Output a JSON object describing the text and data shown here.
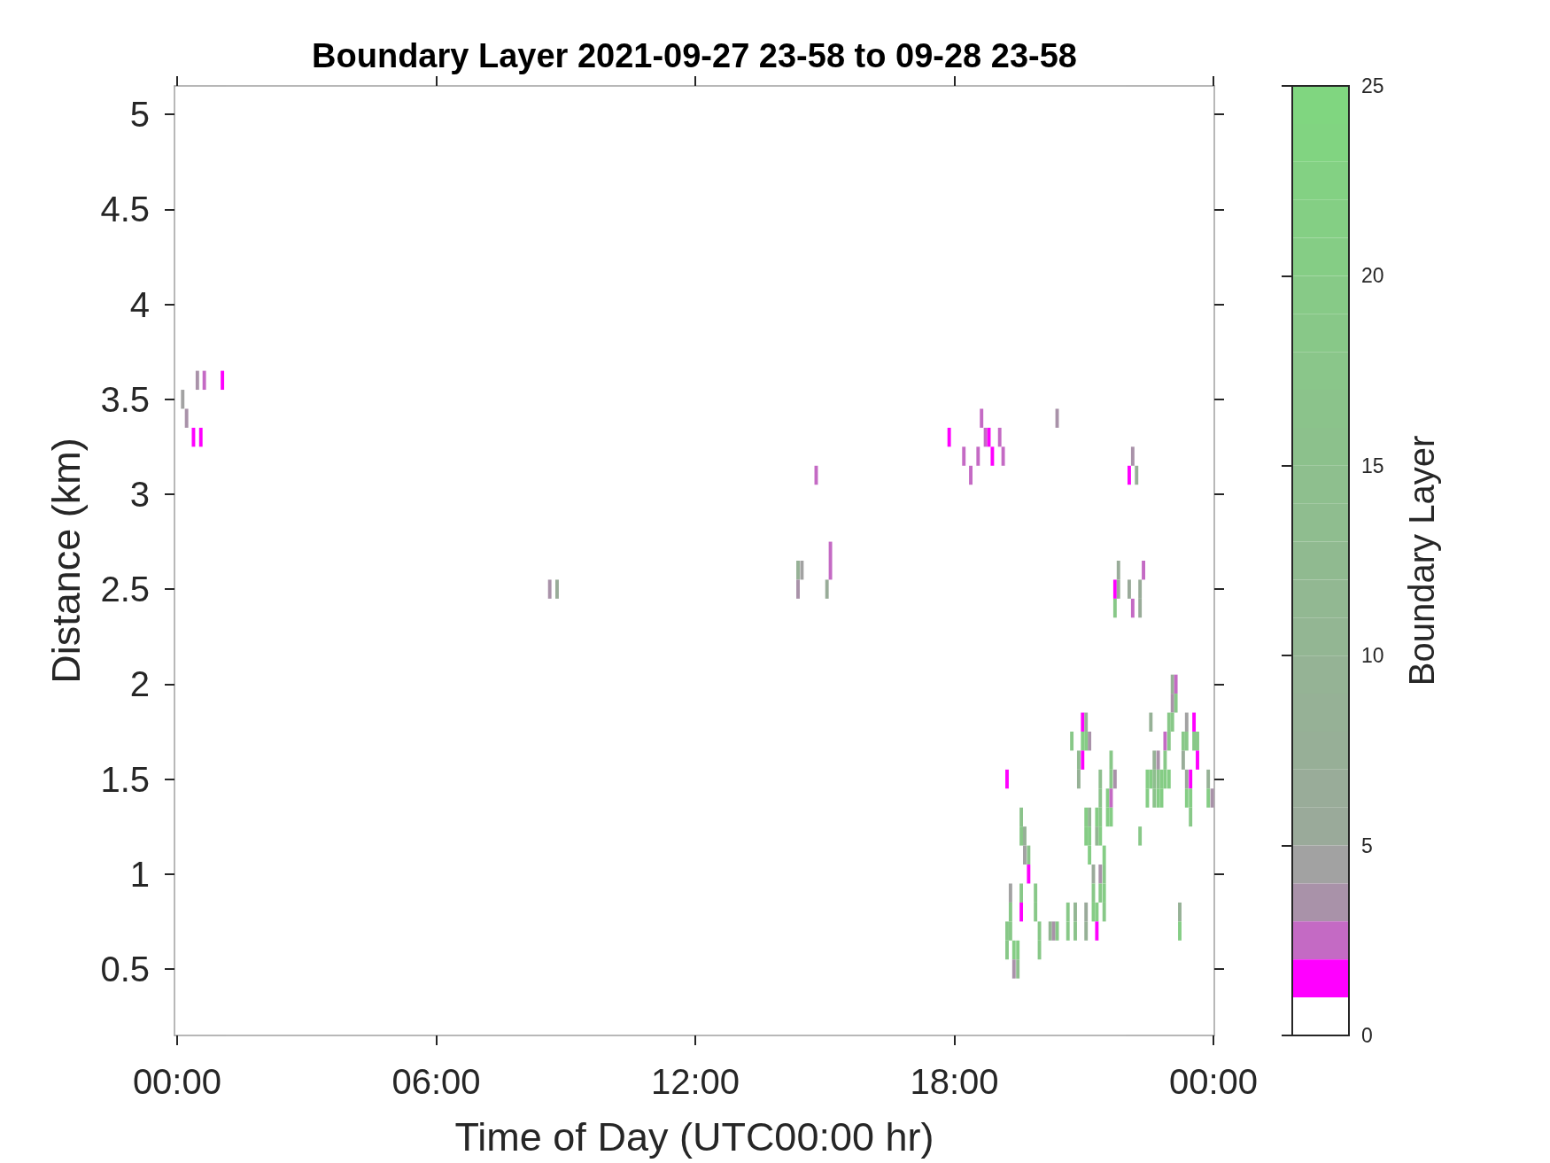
{
  "chart_data": {
    "type": "bar",
    "title": "Boundary Layer 2021-09-27 23-58 to 09-28 23-58",
    "xlabel": "Time of Day (UTC00:00 hr)",
    "ylabel": "Distance (km)",
    "clabel": "Boundary Layer",
    "xlim": [
      -0.06,
      24.02
    ],
    "xticks": [
      {
        "value": 0,
        "label": "00:00"
      },
      {
        "value": 6,
        "label": "06:00"
      },
      {
        "value": 12,
        "label": "12:00"
      },
      {
        "value": 18,
        "label": "18:00"
      },
      {
        "value": 24,
        "label": "00:00"
      }
    ],
    "ylim": [
      0.15,
      5.15
    ],
    "yticks": [
      0.5,
      1,
      1.5,
      2,
      2.5,
      3,
      3.5,
      4,
      4.5,
      5
    ],
    "clim": [
      0,
      25
    ],
    "cticks": [
      0,
      5,
      10,
      15,
      20,
      25
    ],
    "series": [
      {
        "x": [
          0.13,
          0.22,
          0.38,
          0.47,
          0.55,
          0.63,
          1.05,
          8.63,
          8.8,
          14.38,
          14.47,
          14.8,
          15.05,
          15.13,
          17.88,
          18.22,
          18.38,
          18.55,
          18.63,
          18.72,
          18.8,
          18.88,
          19.05,
          19.13,
          19.22,
          19.3,
          19.38,
          19.47,
          19.55,
          19.63,
          19.72,
          19.88,
          19.97,
          20.22,
          20.3,
          20.38,
          20.63,
          20.72,
          20.8,
          20.88,
          20.97,
          21.05,
          21.13,
          21.22,
          21.3,
          21.38,
          21.47,
          21.55,
          21.63,
          21.72,
          21.8,
          22.05,
          22.13,
          22.22,
          22.3,
          22.38,
          22.47,
          22.55,
          22.63,
          22.72,
          22.8,
          22.88,
          22.97,
          23.05,
          23.13,
          23.22,
          23.3,
          23.38,
          23.47,
          23.55,
          23.63,
          23.88,
          23.97
        ],
        "base": [
          3.45,
          3.35,
          3.25,
          3.55,
          3.25,
          3.55,
          3.55,
          2.45,
          2.45,
          2.55,
          2.55,
          3.05,
          2.45,
          2.65,
          3.25,
          3.15,
          3.05,
          3.15,
          3.35,
          3.25,
          3.25,
          3.15,
          3.25,
          3.15,
          1.45,
          0.85,
          0.55,
          0.55,
          1.25,
          1.15,
          1.05,
          0.85,
          0.65,
          0.65,
          0.65,
          3.35,
          0.75,
          1.65,
          0.75,
          1.55,
          1.75,
          1.75,
          1.65,
          0.95,
          1.25,
          1.45,
          1.05,
          1.35,
          1.55,
          2.45,
          2.55,
          3.05,
          3.15,
          3.05,
          2.45,
          2.55,
          1.45,
          1.75,
          1.55,
          1.55,
          1.45,
          1.65,
          1.75,
          1.95,
          1.95,
          0.75,
          1.65,
          1.75,
          1.45,
          1.75,
          1.65,
          1.45,
          1.35
        ],
        "values": [
          0.1,
          0.1,
          0.1,
          0.1,
          0.1,
          0.1,
          0.1,
          0.1,
          0.1,
          0.1,
          0.1,
          0.1,
          0.1,
          0.1,
          0.1,
          0.1,
          0.1,
          0.1,
          0.1,
          0.1,
          0.1,
          0.1,
          0.1,
          0.1,
          0.1,
          0.1,
          0.1,
          0.1,
          0.1,
          0.1,
          0.1,
          0.1,
          0.1,
          0.1,
          0.1,
          0.1,
          0.1,
          0.1,
          0.1,
          0.1,
          0.1,
          0.1,
          0.1,
          0.1,
          0.1,
          0.1,
          0.1,
          0.1,
          0.1,
          0.1,
          0.1,
          0.1,
          0.1,
          0.1,
          0.1,
          0.1,
          0.1,
          0.1,
          0.1,
          0.1,
          0.1,
          0.1,
          0.1,
          0.1,
          0.1,
          0.1,
          0.1,
          0.1,
          0.1,
          0.1,
          0.1,
          0.1,
          0.1
        ],
        "colors": [
          "#a2a2a2",
          "#a992a9",
          "#ff00ff",
          "#a992a9",
          "#ff00ff",
          "#c46ac4",
          "#ff00ff",
          "#a992a9",
          "#99ac99",
          "#96b196",
          "#a2a2a2",
          "#c46ac4",
          "#99ac99",
          "#c46ac4",
          "#ff00ff",
          "#c46ac4",
          "#c46ac4",
          "#c46ac4",
          "#c46ac4",
          "#c46ac4",
          "#ff00ff",
          "#ff00ff",
          "#c46ac4",
          "#c46ac4",
          "#ff00ff",
          "#a2a2a2",
          "#85cd85",
          "#85cd85",
          "#8bc38b",
          "#96b196",
          "#8bc38b",
          "#88c888",
          "#88c888",
          "#93b693",
          "#a992a9",
          "#a992a9",
          "#88c888",
          "#88c888",
          "#93b693",
          "#90ba90",
          "#ff00ff",
          "#96b196",
          "#a992a9",
          "#9aaa9a",
          "#85cd85",
          "#8ebf8e",
          "#85cd85",
          "#85cd85",
          "#88c888",
          "#ff00ff",
          "#99ac99",
          "#ff00ff",
          "#a992a9",
          "#97af97",
          "#99ac99",
          "#c46ac4",
          "#85cd85",
          "#96b196",
          "#96b196",
          "#a992a9",
          "#85cd85",
          "#c46ac4",
          "#88c888",
          "#96b196",
          "#c46ac4",
          "#96b196",
          "#88c888",
          "#a2a2a2",
          "#ff00ff",
          "#ff00ff",
          "#88c888",
          "#96b196",
          "#a992a9"
        ]
      },
      {
        "x": [
          14.38,
          15.13,
          19.22,
          19.3,
          19.38,
          19.47,
          19.55,
          19.63,
          19.72,
          19.88,
          19.97,
          20.38,
          20.63,
          20.8,
          20.88,
          20.97,
          21.05,
          21.13,
          21.22,
          21.3,
          21.38,
          21.47,
          21.55,
          21.63,
          21.72,
          21.8,
          22.05,
          22.13,
          22.3,
          22.47,
          22.55,
          22.63,
          22.72,
          22.8,
          22.88,
          22.97,
          23.05,
          23.13,
          23.22,
          23.3,
          23.38,
          23.47,
          23.55,
          23.63,
          23.88
        ],
        "base": [
          2.45,
          2.55,
          0.65,
          0.75,
          0.45,
          0.45,
          1.15,
          1.05,
          0.95,
          0.75,
          0.55,
          0.65,
          0.65,
          0.65,
          1.45,
          1.65,
          1.65,
          1.25,
          0.85,
          1.15,
          1.35,
          0.95,
          1.25,
          1.45,
          2.35,
          2.45,
          2.45,
          2.35,
          2.35,
          1.35,
          1.45,
          1.45,
          1.45,
          1.35,
          1.55,
          1.65,
          1.85,
          1.85,
          0.65,
          1.55,
          1.65,
          1.35,
          1.65,
          1.55,
          1.35
        ],
        "values": [
          0.1,
          0.1,
          0.1,
          0.1,
          0.1,
          0.1,
          0.1,
          0.1,
          0.1,
          0.1,
          0.1,
          0.1,
          0.1,
          0.1,
          0.1,
          0.1,
          0.1,
          0.1,
          0.1,
          0.1,
          0.1,
          0.1,
          0.1,
          0.1,
          0.1,
          0.1,
          0.1,
          0.1,
          0.1,
          0.1,
          0.1,
          0.1,
          0.1,
          0.1,
          0.1,
          0.1,
          0.1,
          0.1,
          0.1,
          0.1,
          0.1,
          0.1,
          0.1,
          0.1,
          0.1
        ],
        "colors": [
          "#a992a9",
          "#c46ac4",
          "#88c888",
          "#88c888",
          "#a992a9",
          "#8ebf8e",
          "#88c888",
          "#a2a2a2",
          "#ff00ff",
          "#88c888",
          "#88c888",
          "#88c888",
          "#88c888",
          "#8bc38b",
          "#96b196",
          "#85cd85",
          "#85cd85",
          "#93b693",
          "#88c888",
          "#93b693",
          "#8bc38b",
          "#88c888",
          "#85cd85",
          "#88c888",
          "#88c888",
          "#99ac99",
          "#9aaa9a",
          "#c46ac4",
          "#99ac99",
          "#85cd85",
          "#85cd85",
          "#8ebf8e",
          "#8bc38b",
          "#85cd85",
          "#88c888",
          "#88c888",
          "#a992a9",
          "#88c888",
          "#85cd85",
          "#99ac99",
          "#88c888",
          "#85cd85",
          "#88c888",
          "#ff00ff",
          "#85cd85"
        ]
      },
      {
        "x": [
          19.22,
          19.3,
          19.55,
          20.97,
          21.05,
          21.13,
          21.22,
          21.3,
          21.38,
          21.47,
          21.63,
          21.72,
          22.3,
          22.63,
          22.72,
          22.88,
          22.97,
          23.05,
          23.38,
          23.47
        ],
        "base": [
          0.55,
          0.65,
          0.85,
          1.55,
          1.25,
          1.15,
          0.75,
          0.75,
          1.25,
          0.85,
          1.35,
          1.45,
          1.15,
          1.35,
          1.35,
          1.45,
          1.45,
          1.75,
          1.45,
          1.25
        ],
        "values": [
          0.1,
          0.1,
          0.1,
          0.1,
          0.1,
          0.1,
          0.1,
          0.1,
          0.1,
          0.1,
          0.1,
          0.1,
          0.1,
          0.1,
          0.1,
          0.1,
          0.1,
          0.1,
          0.1,
          0.1
        ],
        "colors": [
          "#88c888",
          "#88c888",
          "#88c888",
          "#ff00ff",
          "#85cd85",
          "#85cd85",
          "#85cd85",
          "#85cd85",
          "#88c888",
          "#85cd85",
          "#c46ac4",
          "#a992a9",
          "#88c888",
          "#8bc38b",
          "#85cd85",
          "#85cd85",
          "#85cd85",
          "#88c888",
          "#9aaa9a",
          "#88c888"
        ]
      },
      {
        "x": [
          19.55,
          21.05,
          21.13,
          21.3,
          21.38,
          21.47,
          21.63,
          23.38
        ],
        "base": [
          0.75,
          1.15,
          1.05,
          0.65,
          1.15,
          0.75,
          1.25,
          1.35
        ],
        "values": [
          0.1,
          0.1,
          0.1,
          0.1,
          0.1,
          0.1,
          0.1,
          0.1
        ],
        "colors": [
          "#ff00ff",
          "#85cd85",
          "#85cd85",
          "#ff00ff",
          "#85cd85",
          "#88c888",
          "#85cd85",
          "#85cd85"
        ]
      },
      {
        "x": [
          21.05,
          21.38
        ],
        "base": [
          0.75,
          0.95
        ],
        "values": [
          0.1,
          0.1
        ],
        "colors": [
          "#9aaa9a",
          "#a992a9"
        ]
      },
      {
        "x": [
          21.05,
          21.38
        ],
        "base": [
          0.65,
          0.85
        ],
        "values": [
          0.1,
          0.1
        ],
        "colors": [
          "#96b196",
          "#88c888"
        ]
      }
    ]
  }
}
